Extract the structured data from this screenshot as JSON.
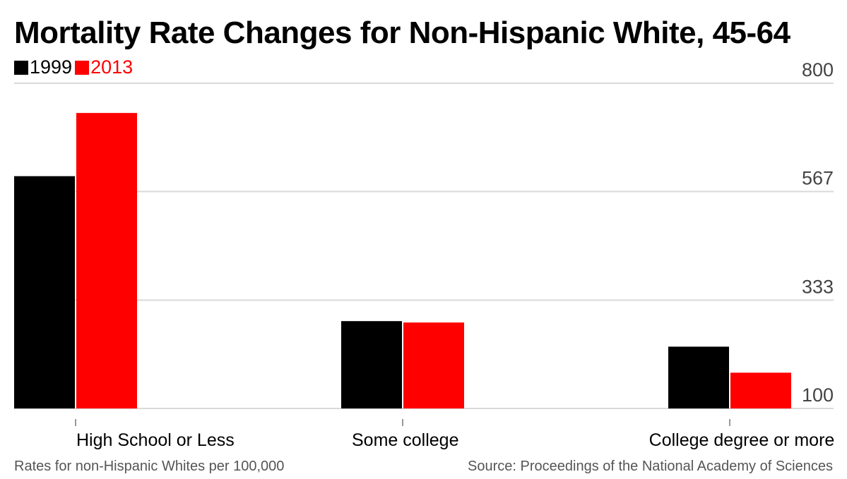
{
  "chart_data": {
    "type": "bar",
    "title": "Mortality Rate Changes for Non-Hispanic White, 45-64",
    "categories": [
      "High School or Less",
      "Some college",
      "College degree or more"
    ],
    "series": [
      {
        "name": "1999",
        "color": "#000000",
        "values": [
          600,
          288,
          233
        ]
      },
      {
        "name": "2013",
        "color": "#ff0000",
        "values": [
          736,
          285,
          177
        ]
      }
    ],
    "yticks": [
      "100",
      "333",
      "567",
      "800"
    ],
    "ylim": [
      100,
      800
    ],
    "legend_position": "top-left",
    "grid": true,
    "note": "Rates for non-Hispanic Whites per 100,000",
    "source": "Source: Proceedings of the National Academy of Sciences"
  }
}
